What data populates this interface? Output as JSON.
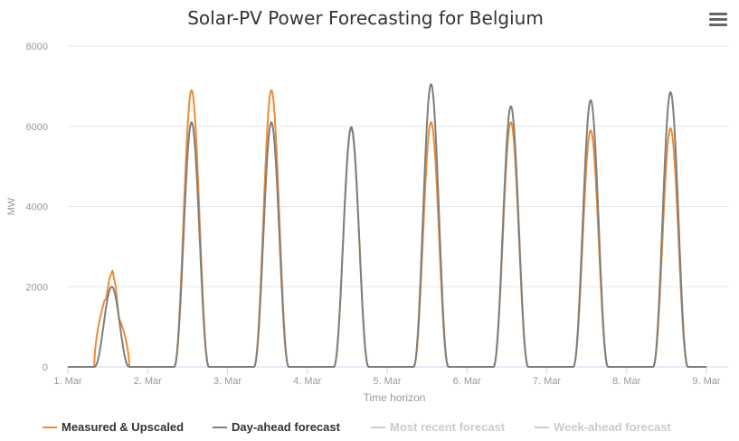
{
  "chart_data": {
    "type": "line",
    "title": "Solar-PV Power Forecasting for Belgium",
    "xlabel": "Time horizon",
    "ylabel": "MW",
    "ylim": [
      0,
      8000
    ],
    "yticks": [
      "0",
      "2000",
      "4000",
      "6000",
      "8000"
    ],
    "xticks": [
      "1. Mar",
      "2. Mar",
      "3. Mar",
      "4. Mar",
      "5. Mar",
      "6. Mar",
      "7. Mar",
      "8. Mar",
      "9. Mar"
    ],
    "grid": true,
    "legend_position": "bottom",
    "series": [
      {
        "name": "Measured & Upscaled",
        "color": "#f08a34",
        "visible": true,
        "peaks": [
          [
            [
              0.43,
              1600
            ],
            [
              0.48,
              1700
            ],
            [
              0.52,
              2200
            ],
            [
              0.56,
              2400
            ],
            [
              0.6,
              2000
            ],
            [
              0.64,
              1200
            ]
          ],
          [
            [
              1.55,
              6900
            ]
          ],
          [
            [
              2.55,
              6900
            ]
          ],
          [
            [
              3.55,
              5950
            ]
          ],
          [
            [
              4.55,
              6100
            ]
          ],
          [
            [
              5.55,
              6100
            ]
          ],
          [
            [
              6.55,
              5900
            ]
          ],
          [
            [
              7.55,
              5950
            ]
          ]
        ]
      },
      {
        "name": "Day-ahead forecast",
        "color": "#7f7f7f",
        "visible": true,
        "peaks": [
          [
            [
              0.52,
              2000
            ]
          ],
          [
            [
              1.55,
              6100
            ]
          ],
          [
            [
              2.55,
              6100
            ]
          ],
          [
            [
              3.55,
              5980
            ]
          ],
          [
            [
              4.55,
              7050
            ]
          ],
          [
            [
              5.55,
              6500
            ]
          ],
          [
            [
              6.55,
              6650
            ]
          ],
          [
            [
              7.55,
              6850
            ]
          ]
        ]
      },
      {
        "name": "Most recent forecast",
        "color": "#cccccc",
        "visible": false,
        "peaks": []
      },
      {
        "name": "Week-ahead forecast",
        "color": "#cccccc",
        "visible": false,
        "peaks": []
      }
    ]
  },
  "ui": {
    "menu_icon": "hamburger-menu-icon"
  }
}
